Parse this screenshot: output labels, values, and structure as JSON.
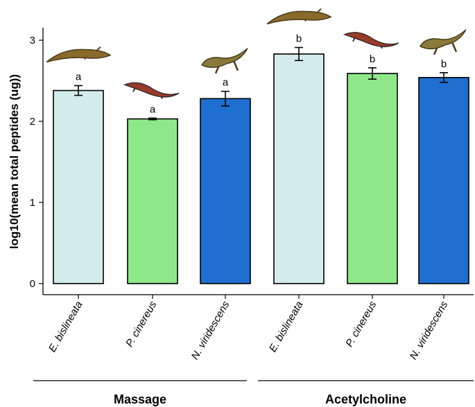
{
  "chart_data": {
    "type": "bar",
    "ylabel": "log10(mean total peptides (ug))",
    "xlabel": "",
    "ylim": [
      0,
      3
    ],
    "yticks": [
      0,
      1,
      2,
      3
    ],
    "grid": false,
    "legend": "none",
    "groups": [
      {
        "label": "Massage",
        "categories": [
          0,
          1,
          2
        ]
      },
      {
        "label": "Acetylcholine",
        "categories": [
          3,
          4,
          5
        ]
      }
    ],
    "bars": [
      {
        "category": "E. bislineata",
        "value": 2.38,
        "err_low": 2.32,
        "err_high": 2.44,
        "letter": "a",
        "color": "#d4ecec",
        "species": "two-lined salamander"
      },
      {
        "category": "P. cinereus",
        "value": 2.03,
        "err_low": 2.02,
        "err_high": 2.04,
        "letter": "a",
        "color": "#8ee88a",
        "species": "red-backed salamander"
      },
      {
        "category": "N. viridescens",
        "value": 2.28,
        "err_low": 2.19,
        "err_high": 2.37,
        "letter": "a",
        "color": "#1e6fd0",
        "species": "eastern newt"
      },
      {
        "category": "E. bislineata",
        "value": 2.83,
        "err_low": 2.75,
        "err_high": 2.91,
        "letter": "b",
        "color": "#d4ecec",
        "species": "two-lined salamander"
      },
      {
        "category": "P. cinereus",
        "value": 2.59,
        "err_low": 2.52,
        "err_high": 2.66,
        "letter": "b",
        "color": "#8ee88a",
        "species": "red-backed salamander"
      },
      {
        "category": "N. viridescens",
        "value": 2.54,
        "err_low": 2.48,
        "err_high": 2.6,
        "letter": "b",
        "color": "#1e6fd0",
        "species": "eastern newt"
      }
    ]
  }
}
